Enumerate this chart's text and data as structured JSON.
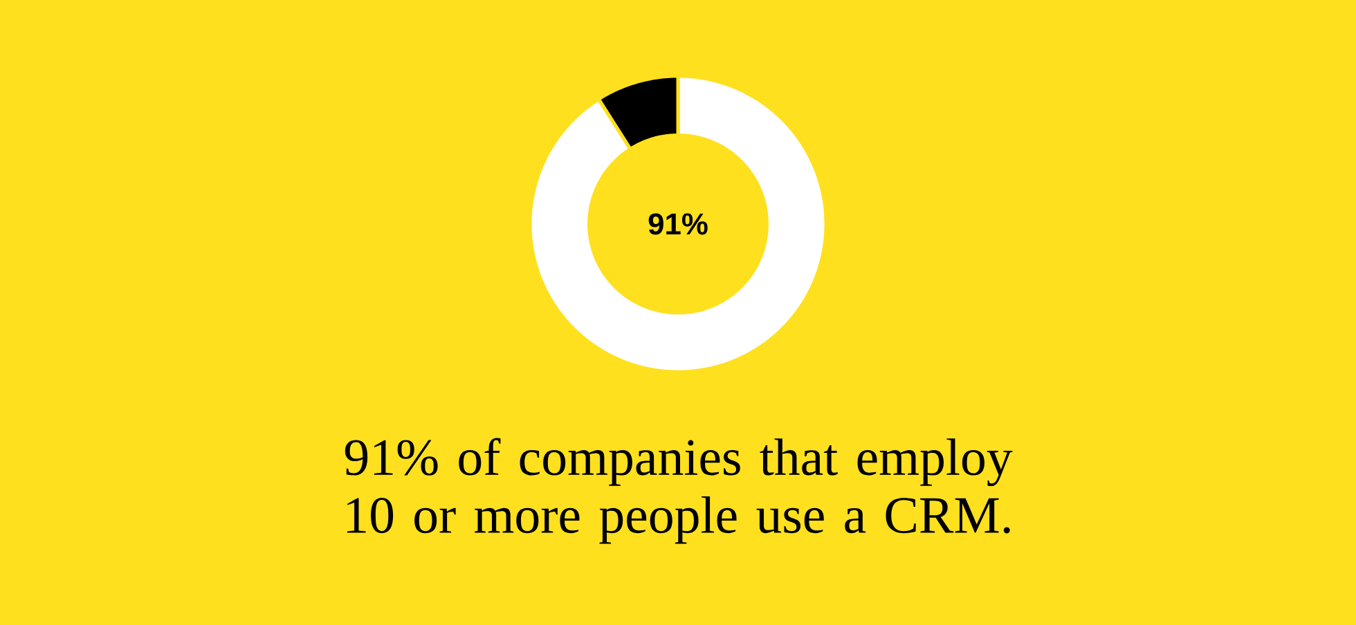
{
  "chart_data": {
    "type": "donut",
    "categories": [
      null,
      null
    ],
    "values": [
      91,
      9
    ],
    "colors": [
      "#ffffff",
      "#000000"
    ],
    "value_labels": [
      "91%",
      null
    ],
    "annotations": [
      "91% of companies that employ 10 or more people use a CRM."
    ]
  }
}
